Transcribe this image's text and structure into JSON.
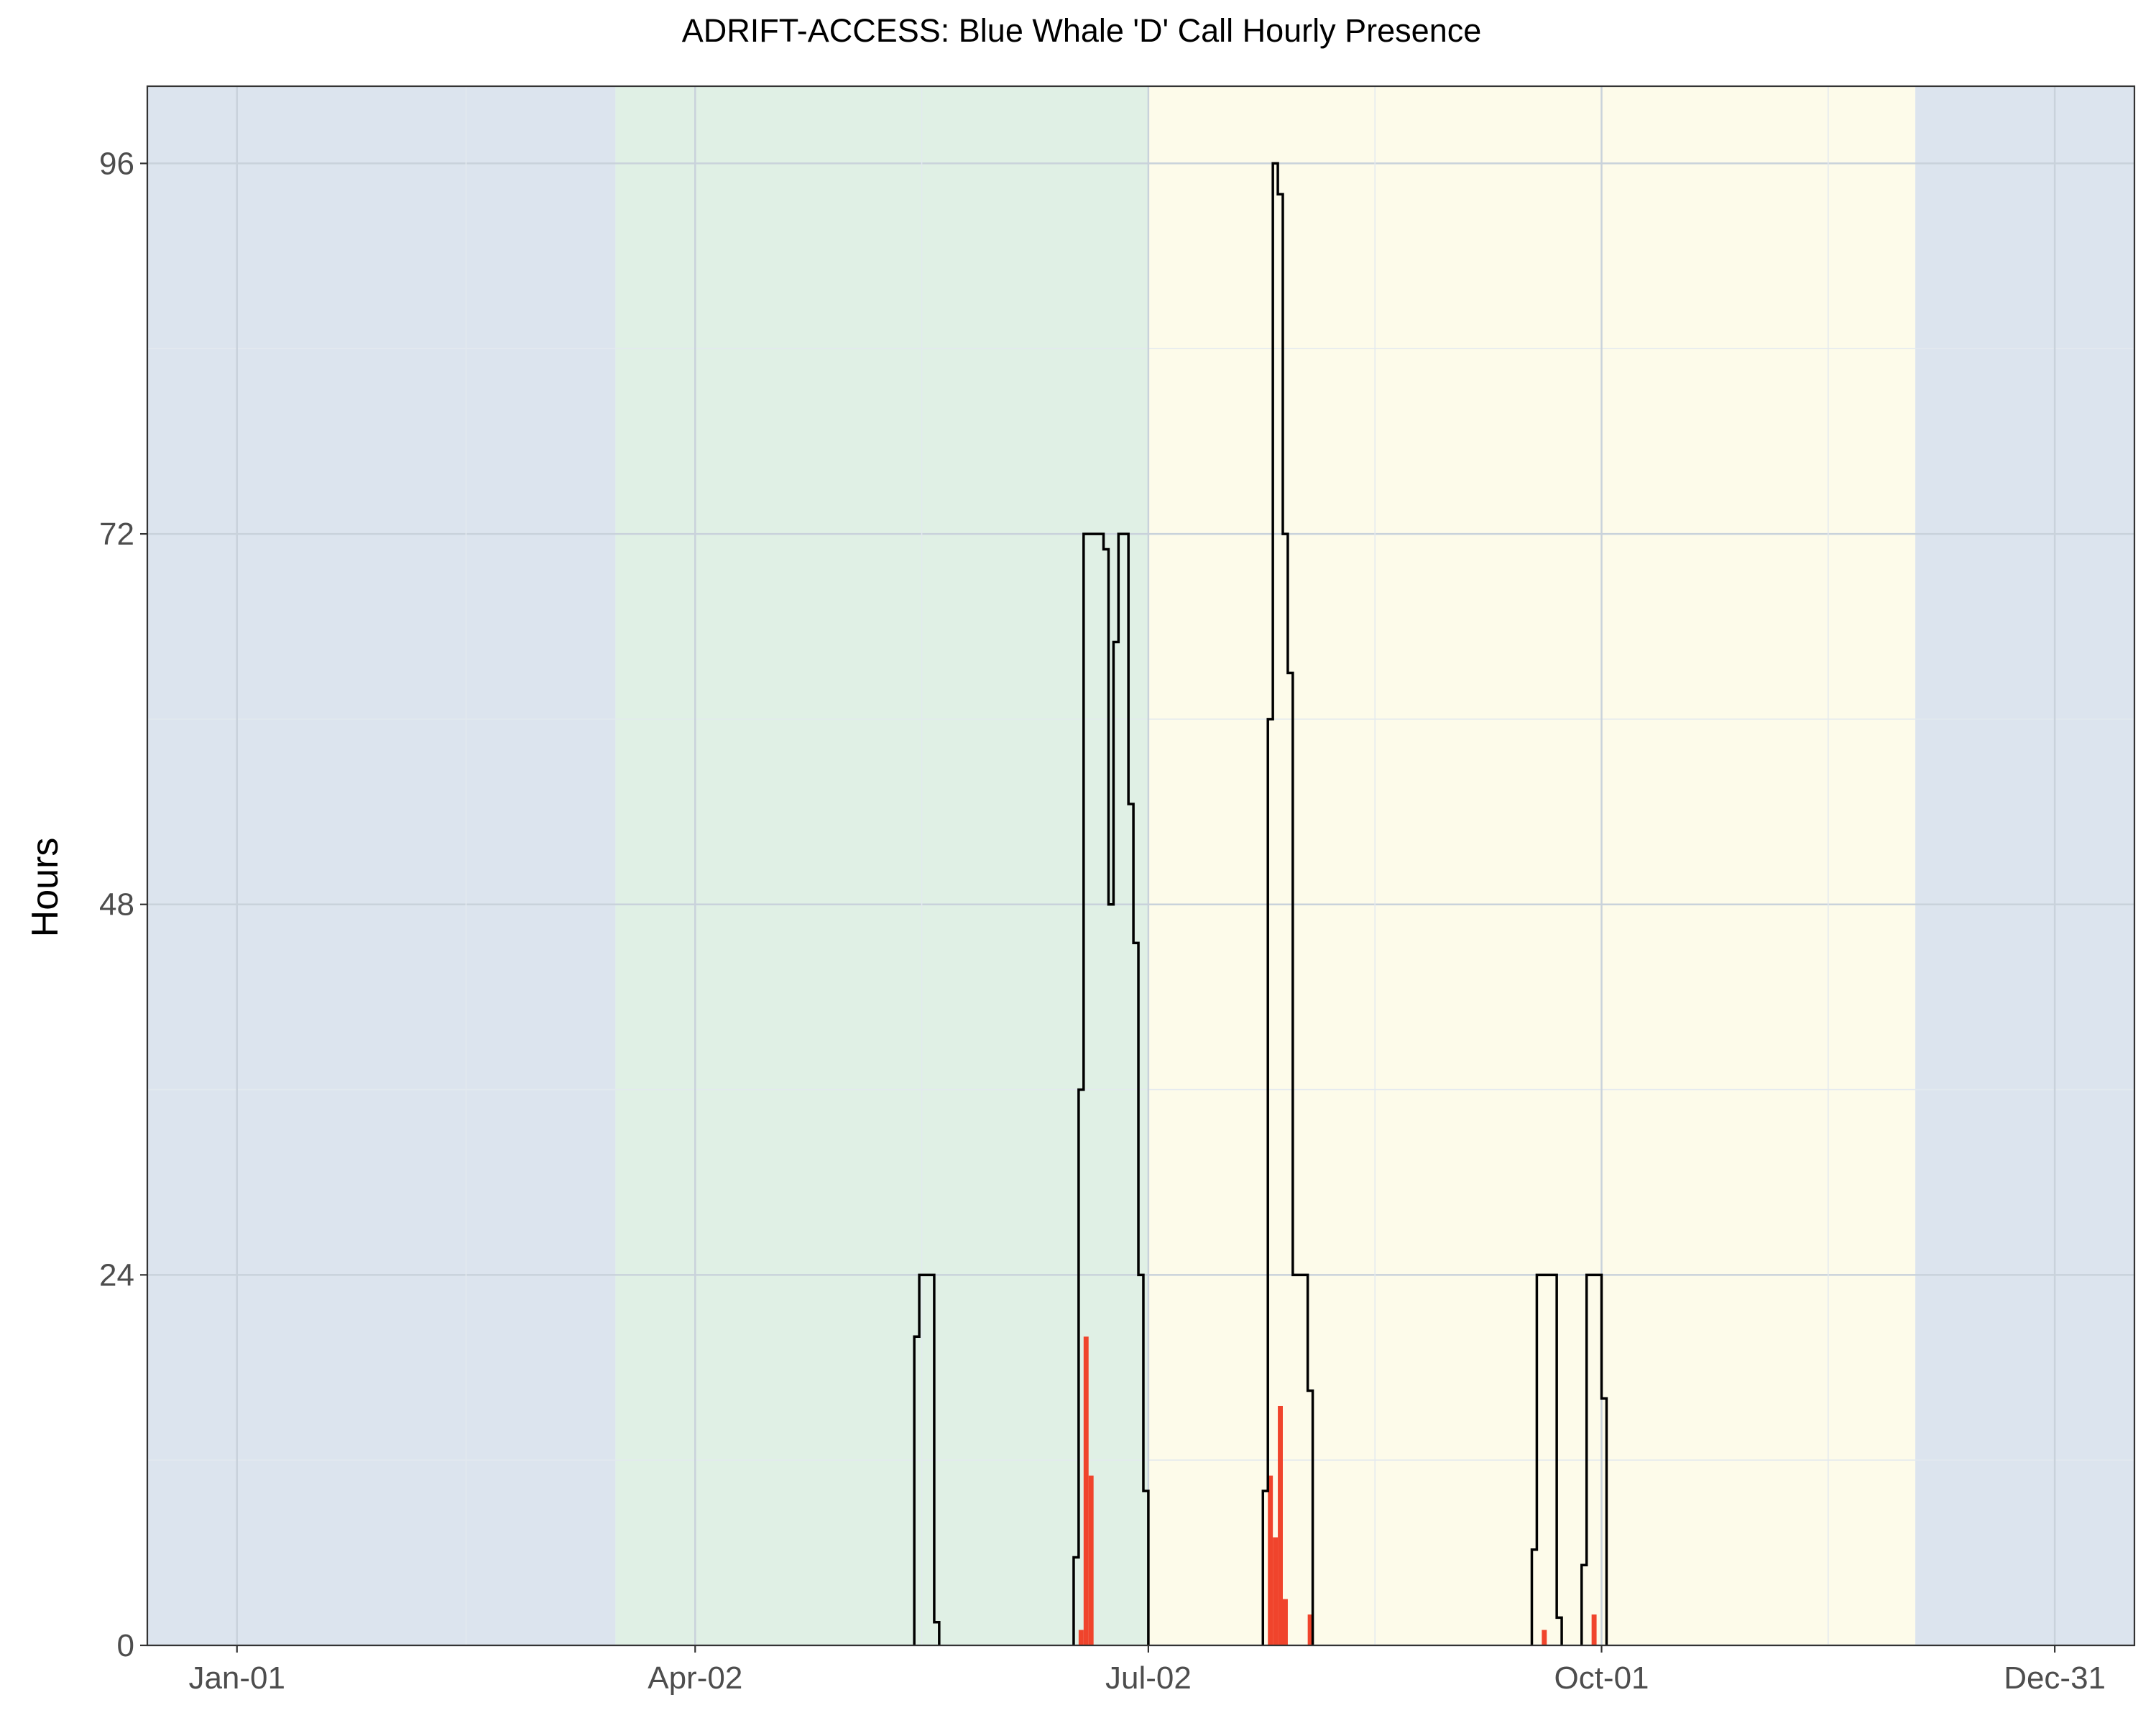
{
  "chart_data": {
    "type": "area",
    "title": "ADRIFT-ACCESS: Blue Whale 'D' Call Hourly Presence",
    "xlabel": "",
    "ylabel": "Hours",
    "ylim": [
      0,
      101
    ],
    "yticks": [
      0,
      24,
      48,
      72,
      96
    ],
    "xlim": [
      "2023-12-14",
      "2025-01-16"
    ],
    "xticks": [
      {
        "date": "2024-01-01",
        "label": "Jan-01"
      },
      {
        "date": "2024-04-02",
        "label": "Apr-02"
      },
      {
        "date": "2024-07-02",
        "label": "Jul-02"
      },
      {
        "date": "2024-10-01",
        "label": "Oct-01"
      },
      {
        "date": "2024-12-31",
        "label": "Dec-31"
      }
    ],
    "grid": true,
    "season_bands": [
      {
        "start": "2023-12-14",
        "end": "2024-03-17",
        "color": "#dce4ee"
      },
      {
        "start": "2024-03-17",
        "end": "2024-07-02",
        "color": "#e0f0e5"
      },
      {
        "start": "2024-07-02",
        "end": "2024-12-03",
        "color": "#fdfbea"
      },
      {
        "start": "2024-12-03",
        "end": "2025-01-16",
        "color": "#dce4ee"
      }
    ],
    "colors": {
      "outline": "#000000",
      "bars": "#f0442c",
      "grid_major": "#c9d2db",
      "grid_minor": "#e3e9ef"
    },
    "series": [
      {
        "type": "step",
        "points": [
          [
            "2024-05-16",
            0
          ],
          [
            "2024-05-16",
            20
          ],
          [
            "2024-05-17",
            20
          ],
          [
            "2024-05-17",
            24
          ],
          [
            "2024-05-20",
            24
          ],
          [
            "2024-05-20",
            1.5
          ],
          [
            "2024-05-21",
            1.5
          ],
          [
            "2024-05-21",
            0
          ],
          [
            "2024-06-17",
            0
          ],
          [
            "2024-06-17",
            5.7
          ],
          [
            "2024-06-18",
            5.7
          ],
          [
            "2024-06-18",
            36
          ],
          [
            "2024-06-19",
            36
          ],
          [
            "2024-06-19",
            72
          ],
          [
            "2024-06-23",
            72
          ],
          [
            "2024-06-23",
            71
          ],
          [
            "2024-06-24",
            71
          ],
          [
            "2024-06-24",
            48
          ],
          [
            "2024-06-25",
            48
          ],
          [
            "2024-06-25",
            65
          ],
          [
            "2024-06-26",
            65
          ],
          [
            "2024-06-26",
            72
          ],
          [
            "2024-06-28",
            72
          ],
          [
            "2024-06-28",
            54.5
          ],
          [
            "2024-06-29",
            54.5
          ],
          [
            "2024-06-29",
            45.5
          ],
          [
            "2024-06-30",
            45.5
          ],
          [
            "2024-06-30",
            24
          ],
          [
            "2024-07-01",
            24
          ],
          [
            "2024-07-01",
            10
          ],
          [
            "2024-07-02",
            10
          ],
          [
            "2024-07-02",
            0
          ],
          [
            "2024-07-25",
            0
          ],
          [
            "2024-07-25",
            10
          ],
          [
            "2024-07-26",
            10
          ],
          [
            "2024-07-26",
            60
          ],
          [
            "2024-07-27",
            60
          ],
          [
            "2024-07-27",
            96
          ],
          [
            "2024-07-28",
            96
          ],
          [
            "2024-07-28",
            94
          ],
          [
            "2024-07-29",
            94
          ],
          [
            "2024-07-29",
            72
          ],
          [
            "2024-07-30",
            72
          ],
          [
            "2024-07-30",
            63
          ],
          [
            "2024-07-31",
            63
          ],
          [
            "2024-07-31",
            24
          ],
          [
            "2024-08-03",
            24
          ],
          [
            "2024-08-03",
            16.5
          ],
          [
            "2024-08-04",
            16.5
          ],
          [
            "2024-08-04",
            0
          ],
          [
            "2024-09-17",
            0
          ],
          [
            "2024-09-17",
            6.2
          ],
          [
            "2024-09-18",
            6.2
          ],
          [
            "2024-09-18",
            24
          ],
          [
            "2024-09-22",
            24
          ],
          [
            "2024-09-22",
            1.8
          ],
          [
            "2024-09-23",
            1.8
          ],
          [
            "2024-09-23",
            0
          ],
          [
            "2024-09-27",
            0
          ],
          [
            "2024-09-27",
            5.2
          ],
          [
            "2024-09-28",
            5.2
          ],
          [
            "2024-09-28",
            24
          ],
          [
            "2024-10-01",
            24
          ],
          [
            "2024-10-01",
            16
          ],
          [
            "2024-10-02",
            16
          ],
          [
            "2024-10-02",
            0
          ]
        ]
      },
      {
        "type": "bar",
        "width_days": 1,
        "points": [
          [
            "2024-06-18",
            1
          ],
          [
            "2024-06-19",
            20
          ],
          [
            "2024-06-20",
            11
          ],
          [
            "2024-07-26",
            11
          ],
          [
            "2024-07-27",
            7
          ],
          [
            "2024-07-28",
            15.5
          ],
          [
            "2024-07-29",
            3
          ],
          [
            "2024-08-03",
            2
          ],
          [
            "2024-09-19",
            1
          ],
          [
            "2024-09-29",
            2
          ]
        ]
      }
    ]
  }
}
